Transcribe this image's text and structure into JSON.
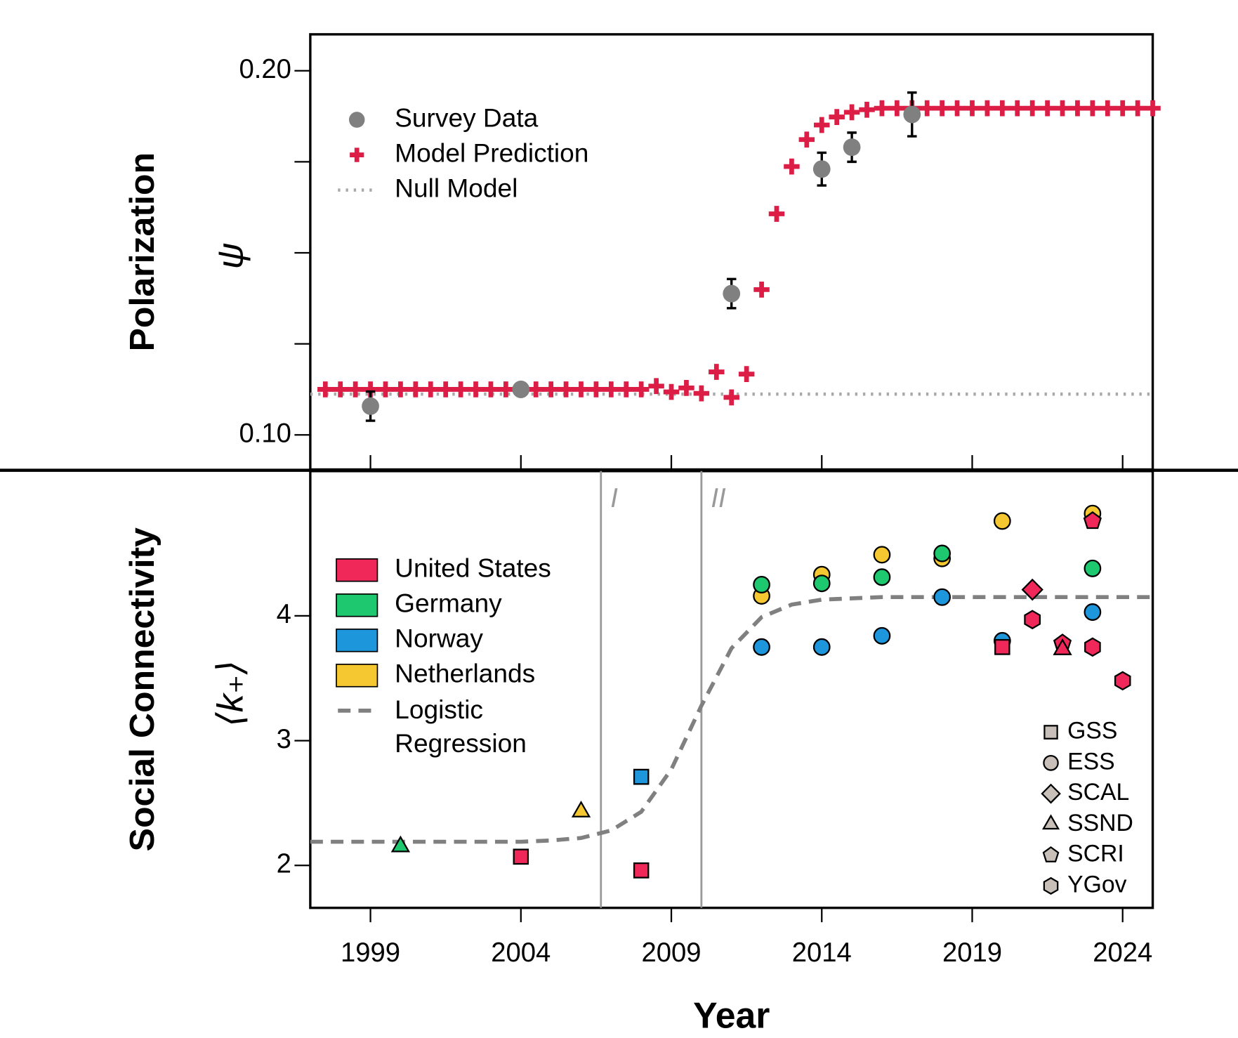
{
  "chart_data": [
    {
      "type": "scatter",
      "ylabel": "Polarization",
      "ysymbol": "ψ",
      "xlim": [
        1997,
        2025
      ],
      "xticks": [
        1999,
        2004,
        2009,
        2014,
        2019,
        2024
      ],
      "xtick_labels": false,
      "ylim": [
        0.0905,
        0.21
      ],
      "yticks": [
        {
          "value": 0.1,
          "label": "0.10"
        },
        {
          "value": 0.2,
          "label": "0.20"
        }
      ],
      "yminorticks": [
        0.125,
        0.15,
        0.175
      ],
      "legend": "upper left",
      "series": [
        {
          "name": "Survey Data",
          "color": "#808080",
          "marker": "circle",
          "x": [
            1999,
            2004,
            2011,
            2014,
            2015,
            2017
          ],
          "values": [
            0.1079,
            0.1125,
            0.1388,
            0.173,
            0.179,
            0.188
          ],
          "errors": [
            0.004,
            0.001,
            0.004,
            0.0045,
            0.004,
            0.006
          ]
        },
        {
          "name": "Model Prediction",
          "color": "#dc1e46",
          "marker": "plus",
          "x": [
            1997.5,
            1998,
            1998.5,
            1999,
            1999.5,
            2000,
            2000.5,
            2001,
            2001.5,
            2002,
            2002.5,
            2003,
            2003.5,
            2004,
            2004.5,
            2005,
            2005.5,
            2006,
            2006.5,
            2007,
            2007.5,
            2008,
            2008.5,
            2009,
            2009.5,
            2010,
            2010.5,
            2011,
            2011.5,
            2012,
            2012.5,
            2013,
            2013.5,
            2014,
            2014.5,
            2015,
            2015.5,
            2016,
            2016.5,
            2017,
            2017.5,
            2018,
            2018.5,
            2019,
            2019.5,
            2020,
            2020.5,
            2021,
            2021.5,
            2022,
            2022.5,
            2023,
            2023.5,
            2024,
            2024.5,
            2025
          ],
          "values": [
            0.1125,
            0.1125,
            0.1125,
            0.1125,
            0.1125,
            0.1125,
            0.1125,
            0.1125,
            0.1125,
            0.1125,
            0.1125,
            0.1125,
            0.1125,
            0.1125,
            0.1125,
            0.1125,
            0.1125,
            0.1125,
            0.1125,
            0.1125,
            0.1125,
            0.1125,
            0.1134,
            0.1118,
            0.1129,
            0.1114,
            0.1173,
            0.1103,
            0.1167,
            0.1399,
            0.1607,
            0.1737,
            0.1811,
            0.1851,
            0.1873,
            0.1886,
            0.1893,
            0.1897,
            0.1897,
            0.1897,
            0.1897,
            0.1897,
            0.1897,
            0.1897,
            0.1897,
            0.1897,
            0.1897,
            0.1897,
            0.1897,
            0.1897,
            0.1897,
            0.1897,
            0.1897,
            0.1897,
            0.1897,
            0.1897
          ]
        },
        {
          "name": "Null Model",
          "color": "#a8a8a8",
          "style": "dotted",
          "x": [
            1997,
            2025
          ],
          "values": [
            0.1112,
            0.1112
          ]
        }
      ]
    },
    {
      "type": "scatter",
      "ylabel": "Social Connectivity",
      "ysymbol": "⟨k₊⟩",
      "xlabel": "Year",
      "xlim": [
        1997,
        2025
      ],
      "xticks": [
        1999,
        2004,
        2009,
        2014,
        2019,
        2024
      ],
      "ylim": [
        1.66,
        5.16
      ],
      "yticks": [
        2,
        3,
        4
      ],
      "vlines": [
        {
          "x": 2006.66,
          "label": "I"
        },
        {
          "x": 2010,
          "label": "II"
        }
      ],
      "legend": "center left",
      "shape_legend": [
        {
          "name": "GSS",
          "marker": "square"
        },
        {
          "name": "ESS",
          "marker": "circle"
        },
        {
          "name": "SCAL",
          "marker": "diamond"
        },
        {
          "name": "SSND",
          "marker": "triangle"
        },
        {
          "name": "SCRI",
          "marker": "pentagon"
        },
        {
          "name": "YGov",
          "marker": "hexagon"
        }
      ],
      "series": [
        {
          "name": "United States",
          "color": "#f0285a",
          "x": [
            2004,
            2008,
            2020,
            2021,
            2021,
            2022,
            2022,
            2023,
            2023,
            2024
          ],
          "values": [
            2.07,
            1.96,
            3.75,
            4.21,
            3.97,
            3.78,
            3.73,
            4.76,
            3.75,
            3.48
          ],
          "markers": [
            "GSS",
            "GSS",
            "GSS",
            "SCAL",
            "YGov",
            "SCRI",
            "SSND",
            "SCRI",
            "YGov",
            "YGov"
          ]
        },
        {
          "name": "Germany",
          "color": "#1ec86e",
          "x": [
            2000,
            2012,
            2014,
            2016,
            2018,
            2023
          ],
          "values": [
            2.15,
            4.25,
            4.26,
            4.31,
            4.5,
            4.38
          ],
          "markers": [
            "SSND",
            "ESS",
            "ESS",
            "ESS",
            "ESS",
            "ESS"
          ]
        },
        {
          "name": "Norway",
          "color": "#1e96dc",
          "x": [
            2008,
            2012,
            2014,
            2016,
            2018,
            2020,
            2023
          ],
          "values": [
            2.71,
            3.75,
            3.75,
            3.84,
            4.15,
            3.8,
            4.03
          ],
          "markers": [
            "GSS",
            "ESS",
            "ESS",
            "ESS",
            "ESS",
            "ESS",
            "ESS"
          ]
        },
        {
          "name": "Netherlands",
          "color": "#f5c832",
          "x": [
            2006,
            2012,
            2014,
            2016,
            2018,
            2020,
            2023
          ],
          "values": [
            2.43,
            4.16,
            4.33,
            4.49,
            4.46,
            4.76,
            4.82
          ],
          "markers": [
            "SSND",
            "ESS",
            "ESS",
            "ESS",
            "ESS",
            "ESS",
            "ESS"
          ]
        },
        {
          "name": "Logistic Regression",
          "color": "#808080",
          "style": "dashed",
          "x": [
            1997,
            1998,
            1999,
            2000,
            2001,
            2002,
            2003,
            2004,
            2005,
            2006,
            2007,
            2008,
            2009,
            2010,
            2011,
            2012,
            2013,
            2014,
            2015,
            2016,
            2017,
            2018,
            2019,
            2020,
            2021,
            2022,
            2023,
            2024,
            2025
          ],
          "values": [
            2.19,
            2.19,
            2.19,
            2.19,
            2.19,
            2.19,
            2.19,
            2.19,
            2.2,
            2.22,
            2.28,
            2.43,
            2.77,
            3.28,
            3.74,
            3.99,
            4.09,
            4.13,
            4.14,
            4.15,
            4.15,
            4.15,
            4.15,
            4.15,
            4.15,
            4.15,
            4.15,
            4.15,
            4.15
          ]
        }
      ]
    }
  ]
}
